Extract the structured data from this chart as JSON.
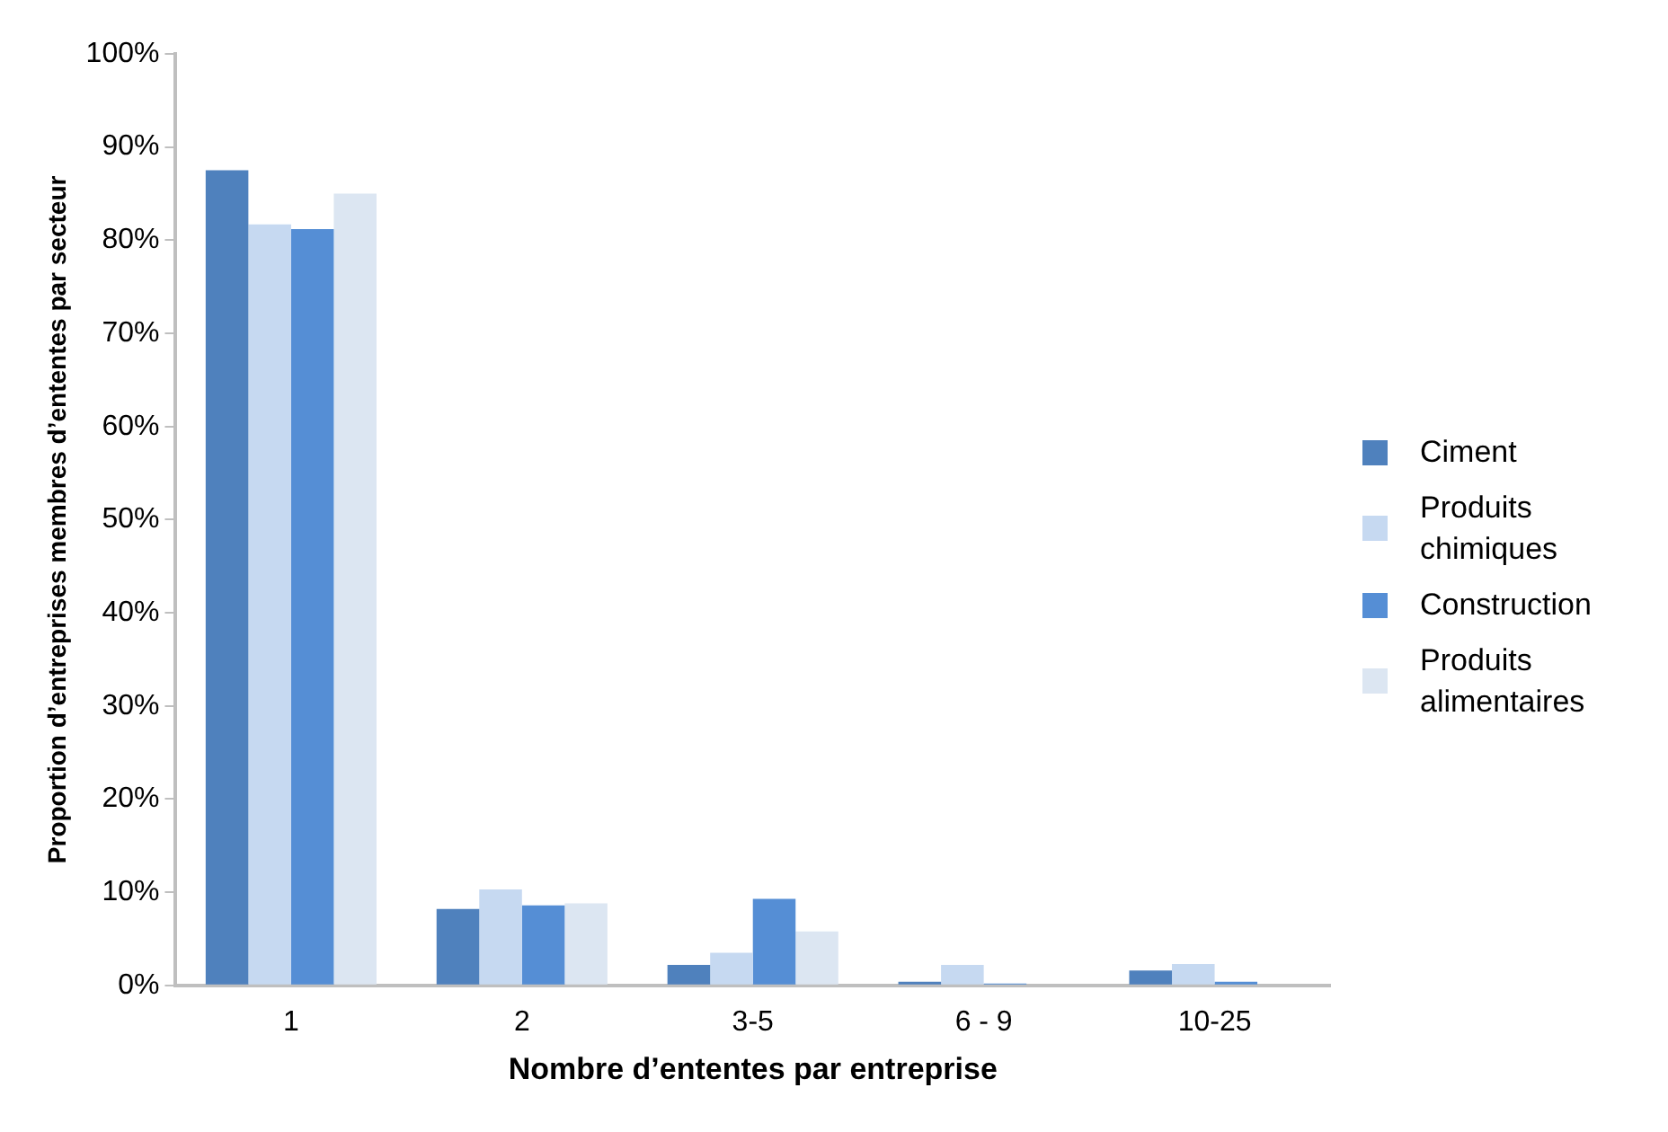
{
  "chart_data": {
    "type": "bar",
    "xlabel": "Nombre d’ententes par entreprise",
    "ylabel": "Proportion d’entreprises membres d’ententes par secteur",
    "categories": [
      "1",
      "2",
      "3-5",
      "6 - 9",
      "10-25"
    ],
    "series": [
      {
        "name": "Ciment",
        "color": "#4f81bd",
        "values": [
          87.5,
          8.2,
          2.2,
          0.4,
          1.6
        ]
      },
      {
        "name": "Produits chimiques",
        "color": "#c6d9f1",
        "values": [
          81.7,
          10.3,
          3.5,
          2.2,
          2.3
        ]
      },
      {
        "name": "Construction",
        "color": "#558ed5",
        "values": [
          81.2,
          8.6,
          9.3,
          0.2,
          0.4
        ]
      },
      {
        "name": "Produits alimentaires",
        "color": "#dce6f2",
        "values": [
          85,
          8.8,
          5.8,
          null,
          null
        ]
      }
    ],
    "ylim": [
      0,
      100
    ],
    "yticks": [
      {
        "value": 0,
        "label": "0%"
      },
      {
        "value": 10,
        "label": "10%"
      },
      {
        "value": 20,
        "label": "20%"
      },
      {
        "value": 30,
        "label": "30%"
      },
      {
        "value": 40,
        "label": "40%"
      },
      {
        "value": 50,
        "label": "50%"
      },
      {
        "value": 60,
        "label": "60%"
      },
      {
        "value": 70,
        "label": "70%"
      },
      {
        "value": 80,
        "label": "80%"
      },
      {
        "value": 90,
        "label": "90%"
      },
      {
        "value": 100,
        "label": "100%"
      }
    ],
    "grid": false,
    "legend": "right"
  }
}
